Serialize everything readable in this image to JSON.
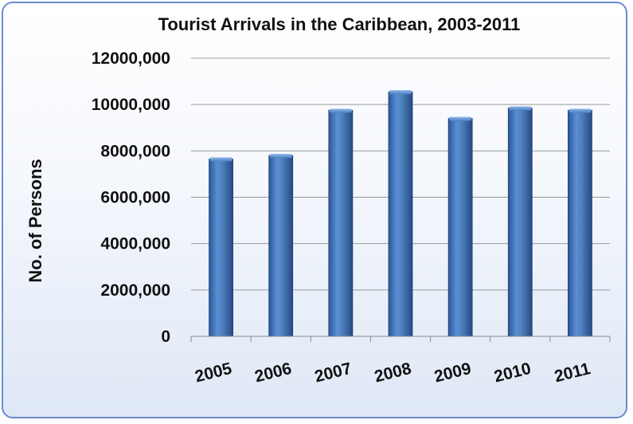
{
  "chart_data": {
    "type": "bar",
    "title": "Tourist Arrivals in the Caribbean, 2003-2011",
    "xlabel": "",
    "ylabel": "No. of Persons",
    "categories": [
      "2005",
      "2006",
      "2007",
      "2008",
      "2009",
      "2010",
      "2011"
    ],
    "values": [
      7650000,
      7800000,
      9750000,
      10550000,
      9400000,
      9850000,
      9750000
    ],
    "ylim": [
      0,
      12000000
    ],
    "ytick_values": [
      0,
      2000000,
      4000000,
      6000000,
      8000000,
      10000000,
      12000000
    ],
    "ytick_labels": [
      "0",
      "2000,000",
      "4000,000",
      "6000,000",
      "8000,000",
      "10000,000",
      "12000,000"
    ],
    "grid": true,
    "legend": "none",
    "colors": {
      "bar": "#4f81bd",
      "bar_dark": "#2b5797",
      "bar_light": "#6f9fe0",
      "frame": "#6b8ccf",
      "grid": "#9a9a9a"
    }
  }
}
